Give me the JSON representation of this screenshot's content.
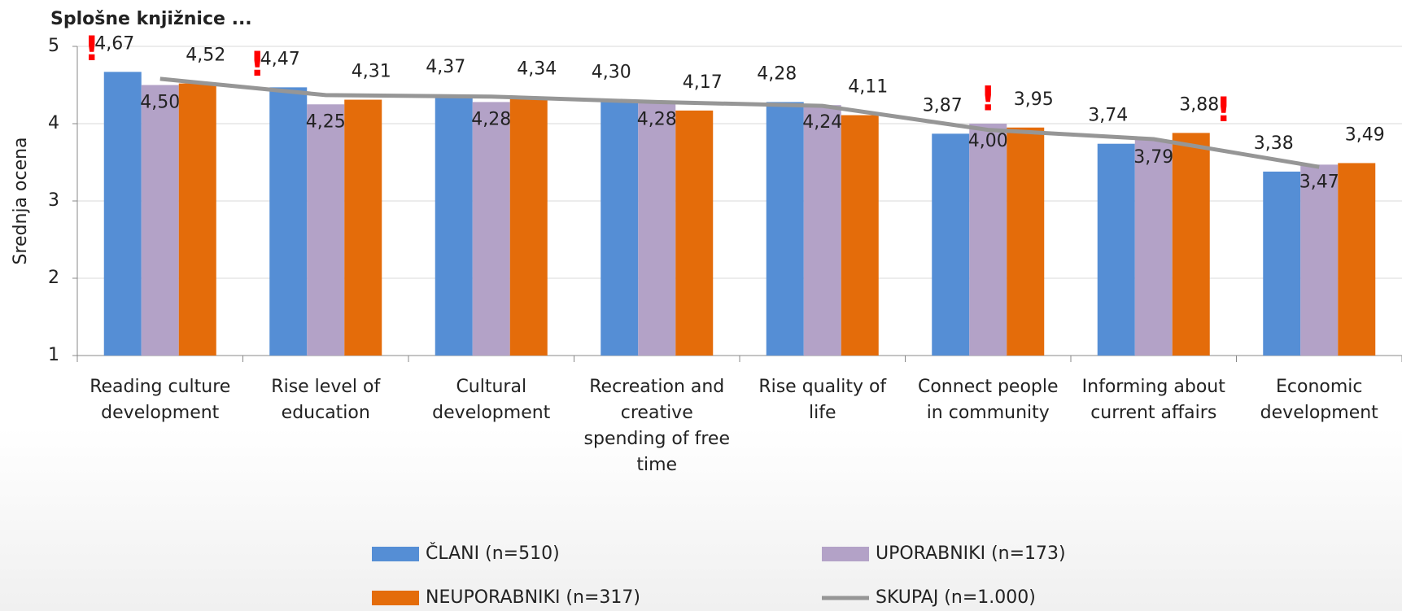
{
  "chart_data": {
    "type": "bar",
    "title": "Splošne knjižnice ...",
    "y_label": "Srednja ocena",
    "categories": [
      "Reading culture development",
      "Rise level of education",
      "Cultural development",
      "Recreation and creative spending of free time",
      "Rise quality of life",
      "Connect people in community",
      "Informing about current affairs",
      "Economic development"
    ],
    "series": [
      {
        "name": "ČLANI (n=510)",
        "type": "bar",
        "color": "#558ed5",
        "values": [
          4.67,
          4.47,
          4.37,
          4.3,
          4.28,
          3.87,
          3.74,
          3.38
        ],
        "value_labels": [
          "4,67",
          "4,47",
          "4,37",
          "4,30",
          "4,28",
          "3,87",
          "3,74",
          "3,38"
        ]
      },
      {
        "name": "UPORABNIKI (n=173)",
        "type": "bar",
        "color": "#b3a2c7",
        "values": [
          4.5,
          4.25,
          4.28,
          4.28,
          4.24,
          4.0,
          3.79,
          3.47
        ],
        "value_labels": [
          "4,50",
          "4,25",
          "4,28",
          "4,28",
          "4,24",
          "4,00",
          "3,79",
          "3,47"
        ]
      },
      {
        "name": "NEUPORABNIKI (n=317)",
        "type": "bar",
        "color": "#e46c0a",
        "values": [
          4.52,
          4.31,
          4.34,
          4.17,
          4.11,
          3.95,
          3.88,
          3.49
        ],
        "value_labels": [
          "4,52",
          "4,31",
          "4,34",
          "4,17",
          "4,11",
          "3,95",
          "3,88",
          "3,49"
        ]
      },
      {
        "name": "SKUPAJ (n=1.000)",
        "type": "line",
        "color": "#969696",
        "values": [
          4.58,
          4.37,
          4.35,
          4.28,
          4.23,
          3.92,
          3.8,
          3.44
        ]
      }
    ],
    "annotations": [
      {
        "text": "!",
        "category": 0,
        "series": 0
      },
      {
        "text": "!",
        "category": 1,
        "series": 0
      },
      {
        "text": "!",
        "category": 5,
        "series": 1
      },
      {
        "text": "!",
        "category": 6,
        "series": 2
      }
    ],
    "annotation_color": "#ff0000",
    "ylim": [
      1,
      5
    ],
    "yticks": [
      1,
      2,
      3,
      4,
      5
    ],
    "grid": true
  }
}
